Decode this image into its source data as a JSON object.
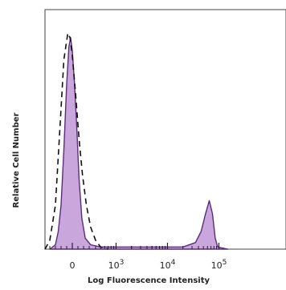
{
  "chart_data": {
    "type": "area",
    "title": "",
    "xlabel": "Log Fluorescence Intensity",
    "ylabel": "Relative Cell Number",
    "x_scale": "biexponential",
    "x_tick_labels": [
      {
        "value": 0,
        "mantissa": "0",
        "exponent": ""
      },
      {
        "value": 1000,
        "mantissa": "10",
        "exponent": "3"
      },
      {
        "value": 10000,
        "mantissa": "10",
        "exponent": "4"
      },
      {
        "value": 100000,
        "mantissa": "10",
        "exponent": "5"
      }
    ],
    "ylim": [
      0,
      100
    ],
    "grid": false,
    "legend": "none",
    "series": [
      {
        "style": "filled",
        "fill_color": "#c9a6dc",
        "line_color": "#5a2d7a",
        "points": [
          [
            -400,
            0
          ],
          [
            -300,
            2
          ],
          [
            -250,
            8
          ],
          [
            -200,
            20
          ],
          [
            -150,
            45
          ],
          [
            -100,
            75
          ],
          [
            -60,
            92
          ],
          [
            -30,
            96
          ],
          [
            0,
            90
          ],
          [
            40,
            75
          ],
          [
            80,
            55
          ],
          [
            120,
            32
          ],
          [
            170,
            14
          ],
          [
            230,
            5
          ],
          [
            320,
            2
          ],
          [
            500,
            1
          ],
          [
            1000,
            1
          ],
          [
            3000,
            1
          ],
          [
            8000,
            1
          ],
          [
            20000,
            1
          ],
          [
            35000,
            3
          ],
          [
            45000,
            8
          ],
          [
            55000,
            16
          ],
          [
            65000,
            22
          ],
          [
            75000,
            16
          ],
          [
            85000,
            5
          ],
          [
            95000,
            1
          ],
          [
            150000,
            0
          ]
        ]
      },
      {
        "style": "dashed",
        "line_color": "#111111",
        "points": [
          [
            -500,
            0
          ],
          [
            -400,
            4
          ],
          [
            -300,
            20
          ],
          [
            -220,
            55
          ],
          [
            -150,
            86
          ],
          [
            -80,
            98
          ],
          [
            -40,
            96
          ],
          [
            0,
            88
          ],
          [
            60,
            70
          ],
          [
            120,
            50
          ],
          [
            180,
            34
          ],
          [
            250,
            20
          ],
          [
            320,
            10
          ],
          [
            400,
            4
          ],
          [
            500,
            1
          ],
          [
            700,
            0
          ]
        ]
      }
    ]
  }
}
